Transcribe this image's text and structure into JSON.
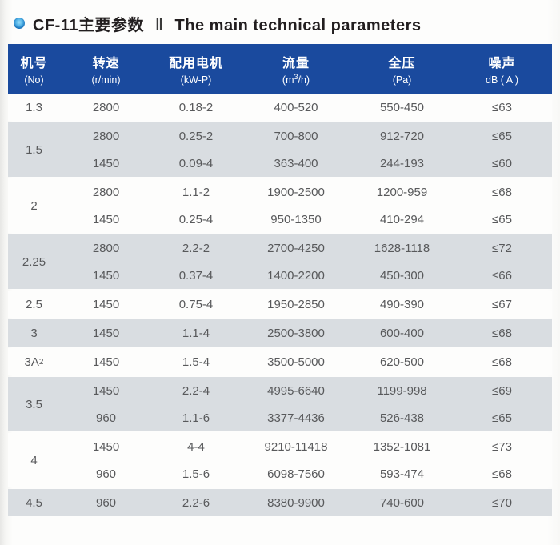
{
  "title": {
    "zh": "CF-11主要参数",
    "divider": "‖",
    "en": "The main technical parameters",
    "bullet_color": "#1670b9"
  },
  "table": {
    "header_bg": "#1a4a9e",
    "header_text_color": "#ffffff",
    "alt_row_bg": "#d9dde1",
    "row_text_color": "#58595b",
    "columns": [
      {
        "zh": "机号",
        "sub": "(No)"
      },
      {
        "zh": "转速",
        "sub": "(r/min)"
      },
      {
        "zh": "配用电机",
        "sub": "(kW-P)"
      },
      {
        "zh": "流量",
        "sub_parts": {
          "pre": "(m",
          "sup": "3",
          "post": "/h)"
        }
      },
      {
        "zh": "全压",
        "sub": "(Pa)"
      },
      {
        "zh": "噪声",
        "sub": "dB ( A )"
      }
    ],
    "groups": [
      {
        "no": "1.3",
        "rows": [
          [
            "2800",
            "0.18-2",
            "400-520",
            "550-450",
            "≤63"
          ]
        ]
      },
      {
        "no": "1.5",
        "rows": [
          [
            "2800",
            "0.25-2",
            "700-800",
            "912-720",
            "≤65"
          ],
          [
            "1450",
            "0.09-4",
            "363-400",
            "244-193",
            "≤60"
          ]
        ]
      },
      {
        "no": "2",
        "rows": [
          [
            "2800",
            "1.1-2",
            "1900-2500",
            "1200-959",
            "≤68"
          ],
          [
            "1450",
            "0.25-4",
            "950-1350",
            "410-294",
            "≤65"
          ]
        ]
      },
      {
        "no": "2.25",
        "rows": [
          [
            "2800",
            "2.2-2",
            "2700-4250",
            "1628-1118",
            "≤72"
          ],
          [
            "1450",
            "0.37-4",
            "1400-2200",
            "450-300",
            "≤66"
          ]
        ]
      },
      {
        "no": "2.5",
        "rows": [
          [
            "1450",
            "0.75-4",
            "1950-2850",
            "490-390",
            "≤67"
          ]
        ]
      },
      {
        "no": "3",
        "rows": [
          [
            "1450",
            "1.1-4",
            "2500-3800",
            "600-400",
            "≤68"
          ]
        ]
      },
      {
        "no": "3A",
        "no_sub": "2",
        "rows": [
          [
            "1450",
            "1.5-4",
            "3500-5000",
            "620-500",
            "≤68"
          ]
        ]
      },
      {
        "no": "3.5",
        "rows": [
          [
            "1450",
            "2.2-4",
            "4995-6640",
            "1199-998",
            "≤69"
          ],
          [
            "960",
            "1.1-6",
            "3377-4436",
            "526-438",
            "≤65"
          ]
        ]
      },
      {
        "no": "4",
        "rows": [
          [
            "1450",
            "4-4",
            "9210-11418",
            "1352-1081",
            "≤73"
          ],
          [
            "960",
            "1.5-6",
            "6098-7560",
            "593-474",
            "≤68"
          ]
        ]
      },
      {
        "no": "4.5",
        "rows": [
          [
            "960",
            "2.2-6",
            "8380-9900",
            "740-600",
            "≤70"
          ]
        ]
      }
    ]
  }
}
